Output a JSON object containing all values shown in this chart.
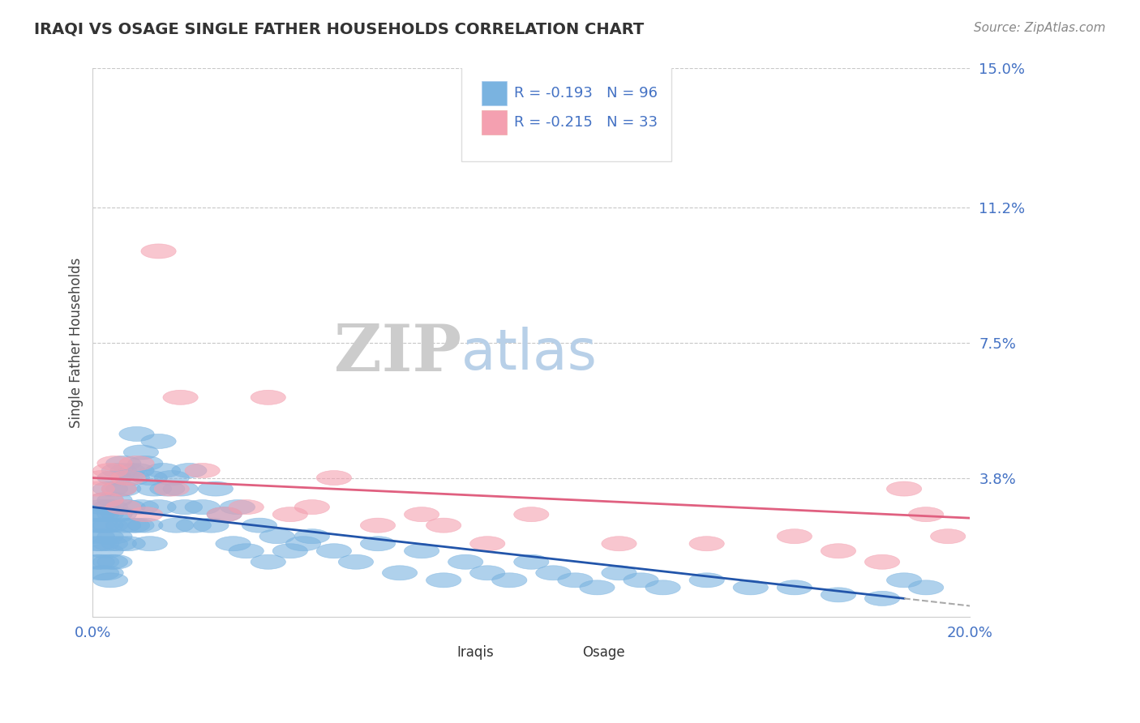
{
  "title": "IRAQI VS OSAGE SINGLE FATHER HOUSEHOLDS CORRELATION CHART",
  "source": "Source: ZipAtlas.com",
  "ylabel": "Single Father Households",
  "xlim": [
    0.0,
    0.2
  ],
  "ylim": [
    0.0,
    0.15
  ],
  "yticks": [
    0.0,
    0.038,
    0.075,
    0.112,
    0.15
  ],
  "ytick_labels": [
    "",
    "3.8%",
    "7.5%",
    "11.2%",
    "15.0%"
  ],
  "xticks": [
    0.0,
    0.05,
    0.1,
    0.15,
    0.2
  ],
  "xtick_labels": [
    "0.0%",
    "",
    "",
    "",
    "20.0%"
  ],
  "tick_color": "#4472c4",
  "background_color": "#ffffff",
  "grid_color": "#c8c8c8",
  "watermark_zip": "ZIP",
  "watermark_atlas": "atlas",
  "watermark_color_zip": "#cccccc",
  "watermark_color_atlas": "#b8d0e8",
  "legend_label1": "Iraqis",
  "legend_label2": "Osage",
  "r1": -0.193,
  "n1": 96,
  "r2": -0.215,
  "n2": 33,
  "color1": "#7ab3e0",
  "color2": "#f4a0b0",
  "line_color1": "#2255aa",
  "line_color2": "#e06080",
  "line1_x0": 0.0,
  "line1_y0": 0.03,
  "line1_x1": 0.185,
  "line1_y1": 0.005,
  "line1_dash_x0": 0.185,
  "line1_dash_x1": 0.2,
  "line2_x0": 0.0,
  "line2_y0": 0.038,
  "line2_x1": 0.2,
  "line2_y1": 0.027,
  "scatter1_x": [
    0.001,
    0.001,
    0.001,
    0.001,
    0.001,
    0.002,
    0.002,
    0.002,
    0.002,
    0.002,
    0.002,
    0.003,
    0.003,
    0.003,
    0.003,
    0.003,
    0.003,
    0.004,
    0.004,
    0.004,
    0.004,
    0.004,
    0.004,
    0.005,
    0.005,
    0.005,
    0.005,
    0.005,
    0.006,
    0.006,
    0.006,
    0.006,
    0.007,
    0.007,
    0.007,
    0.008,
    0.008,
    0.008,
    0.009,
    0.009,
    0.01,
    0.01,
    0.01,
    0.011,
    0.011,
    0.012,
    0.012,
    0.013,
    0.013,
    0.014,
    0.015,
    0.015,
    0.016,
    0.017,
    0.018,
    0.019,
    0.02,
    0.021,
    0.022,
    0.023,
    0.025,
    0.027,
    0.028,
    0.03,
    0.032,
    0.033,
    0.035,
    0.038,
    0.04,
    0.042,
    0.045,
    0.048,
    0.05,
    0.055,
    0.06,
    0.065,
    0.07,
    0.075,
    0.08,
    0.085,
    0.09,
    0.095,
    0.1,
    0.105,
    0.11,
    0.115,
    0.12,
    0.125,
    0.13,
    0.14,
    0.15,
    0.16,
    0.17,
    0.18,
    0.185,
    0.19
  ],
  "scatter1_y": [
    0.028,
    0.025,
    0.022,
    0.02,
    0.015,
    0.03,
    0.028,
    0.025,
    0.02,
    0.015,
    0.012,
    0.032,
    0.028,
    0.025,
    0.022,
    0.018,
    0.012,
    0.035,
    0.03,
    0.025,
    0.02,
    0.015,
    0.01,
    0.038,
    0.032,
    0.028,
    0.022,
    0.015,
    0.04,
    0.035,
    0.028,
    0.02,
    0.042,
    0.035,
    0.025,
    0.04,
    0.03,
    0.02,
    0.038,
    0.025,
    0.05,
    0.04,
    0.025,
    0.045,
    0.03,
    0.042,
    0.025,
    0.038,
    0.02,
    0.035,
    0.048,
    0.03,
    0.04,
    0.035,
    0.038,
    0.025,
    0.035,
    0.03,
    0.04,
    0.025,
    0.03,
    0.025,
    0.035,
    0.028,
    0.02,
    0.03,
    0.018,
    0.025,
    0.015,
    0.022,
    0.018,
    0.02,
    0.022,
    0.018,
    0.015,
    0.02,
    0.012,
    0.018,
    0.01,
    0.015,
    0.012,
    0.01,
    0.015,
    0.012,
    0.01,
    0.008,
    0.012,
    0.01,
    0.008,
    0.01,
    0.008,
    0.008,
    0.006,
    0.005,
    0.01,
    0.008
  ],
  "scatter2_x": [
    0.001,
    0.002,
    0.003,
    0.004,
    0.005,
    0.006,
    0.007,
    0.008,
    0.01,
    0.012,
    0.015,
    0.018,
    0.02,
    0.025,
    0.03,
    0.035,
    0.04,
    0.045,
    0.05,
    0.055,
    0.065,
    0.075,
    0.08,
    0.09,
    0.1,
    0.12,
    0.14,
    0.16,
    0.17,
    0.18,
    0.185,
    0.19,
    0.195
  ],
  "scatter2_y": [
    0.035,
    0.038,
    0.032,
    0.04,
    0.042,
    0.035,
    0.03,
    0.038,
    0.042,
    0.028,
    0.1,
    0.035,
    0.06,
    0.04,
    0.028,
    0.03,
    0.06,
    0.028,
    0.03,
    0.038,
    0.025,
    0.028,
    0.025,
    0.02,
    0.028,
    0.02,
    0.02,
    0.022,
    0.018,
    0.015,
    0.035,
    0.028,
    0.022
  ]
}
